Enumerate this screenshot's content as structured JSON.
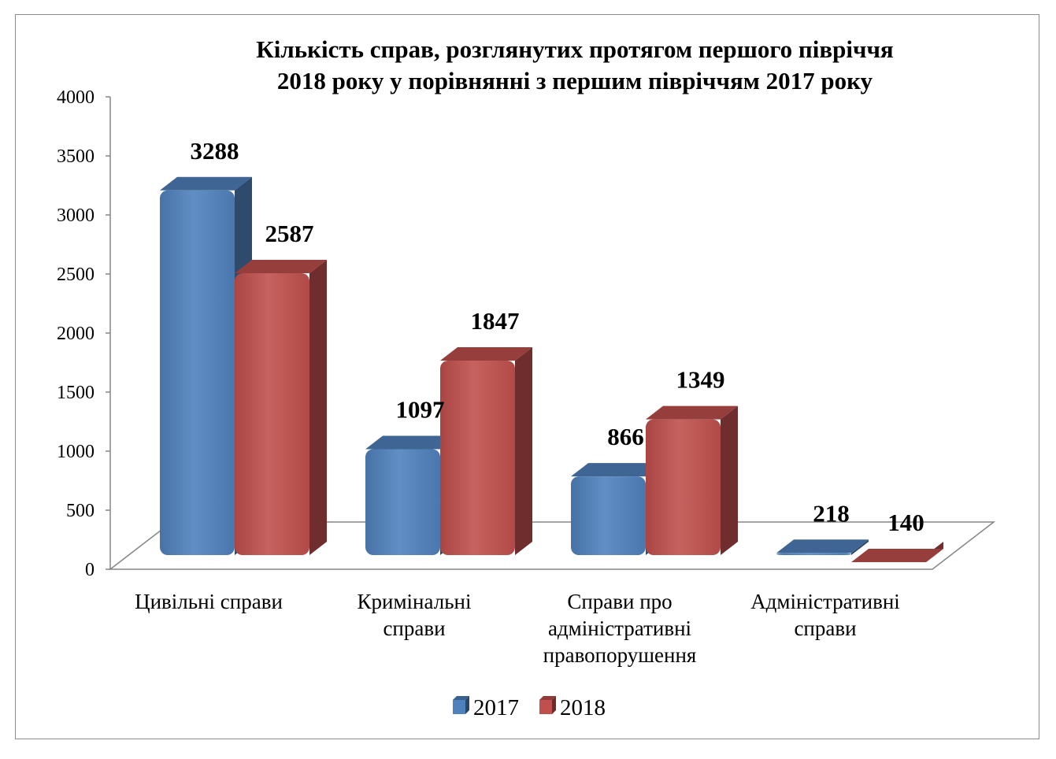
{
  "chart_data": {
    "type": "bar",
    "title": "Кількість справ, розглянутих протягом першого півріччя 2018 року у порівнянні з  першим півріччям 2017 року",
    "title_lines": [
      "Кількість справ, розглянутих протягом першого півріччя",
      "2018 року у порівнянні з  першим півріччям 2017 року"
    ],
    "categories": [
      [
        "Цивільні справи"
      ],
      [
        "Кримінальні",
        "справи"
      ],
      [
        "Справи про",
        "адміністративні",
        "правопорушення"
      ],
      [
        "Адміністративні",
        "справи"
      ]
    ],
    "series": [
      {
        "name": "2017",
        "values": [
          3288,
          1097,
          866,
          218
        ],
        "color": "#4f81bd"
      },
      {
        "name": "2018",
        "values": [
          2587,
          1847,
          1349,
          140
        ],
        "color": "#c0504d"
      }
    ],
    "ylim": [
      0,
      4000
    ],
    "yticks": [
      "0",
      "500",
      "1000",
      "1500",
      "2000",
      "2500",
      "3000",
      "3500",
      "4000"
    ],
    "xlabel": "",
    "ylabel": "",
    "grid": false,
    "legend": "bottom",
    "style": "3d-clustered-column"
  }
}
